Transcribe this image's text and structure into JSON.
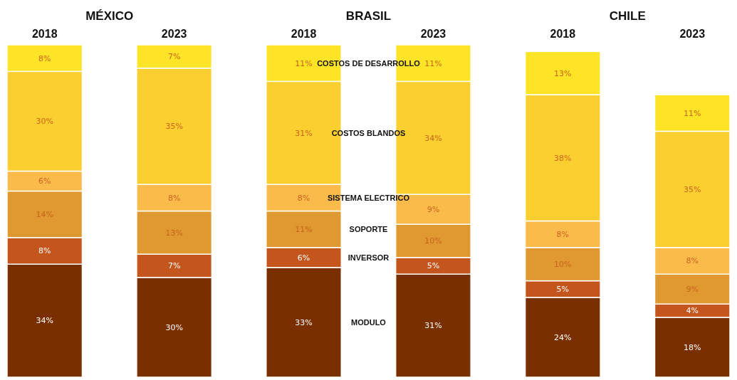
{
  "chart_data": {
    "type": "bar",
    "stacked": true,
    "categories": [
      "2018",
      "2023",
      "2018",
      "2023",
      "2018",
      "2023"
    ],
    "annotations": [
      "MÉXICO",
      "BRASIL",
      "CHILE"
    ],
    "ylim": [
      0,
      100
    ],
    "tick_labels": "x",
    "series": [
      {
        "name": "MODULO",
        "color": "#7a2f00",
        "values": [
          34,
          30,
          33,
          31,
          24,
          18
        ],
        "value_labels": [
          "34%",
          "30%",
          "33%",
          "31%",
          "24%",
          "18%"
        ]
      },
      {
        "name": "INVERSOR",
        "color": "#c4561d",
        "values": [
          8,
          7,
          6,
          5,
          5,
          4
        ],
        "value_labels": [
          "8%",
          "7%",
          "6%",
          "5%",
          "5%",
          "4%"
        ]
      },
      {
        "name": "SOPORTE",
        "color": "#e09830",
        "values": [
          14,
          13,
          11,
          10,
          10,
          9
        ],
        "value_labels": [
          "14%",
          "13%",
          "11%",
          "10%",
          "10%",
          "9%"
        ]
      },
      {
        "name": "SISTEMA ELECTRICO",
        "color": "#fbbb4b",
        "values": [
          6,
          8,
          8,
          9,
          8,
          8
        ],
        "value_labels": [
          "6%",
          "8%",
          "8%",
          "9%",
          "8%",
          "8%"
        ]
      },
      {
        "name": "COSTOS BLANDOS",
        "color": "#fccf30",
        "values": [
          30,
          35,
          31,
          34,
          38,
          35
        ],
        "value_labels": [
          "30%",
          "35%",
          "31%",
          "34%",
          "38%",
          "35%"
        ]
      },
      {
        "name": "COSTOS DE DESARROLLO",
        "color": "#fde427",
        "values": [
          8,
          7,
          11,
          11,
          13,
          11
        ],
        "value_labels": [
          "8%",
          "7%",
          "11%",
          "11%",
          "13%",
          "11%"
        ]
      }
    ]
  }
}
